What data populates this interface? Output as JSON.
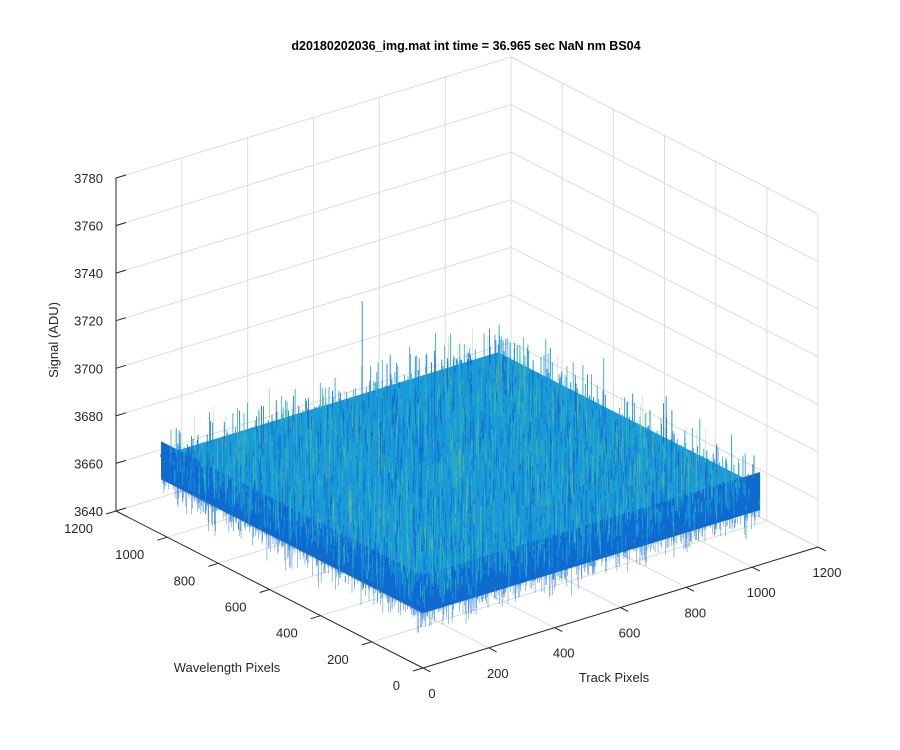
{
  "chart_data": {
    "type": "surface3d",
    "title": "d20180202036_img.mat int time = 36.965 sec  NaN nm BS04",
    "xlabel": "Track Pixels",
    "ylabel": "Wavelength Pixels",
    "zlabel": "Signal (ADU)",
    "xlim": [
      0,
      1200
    ],
    "ylim": [
      0,
      1200
    ],
    "zlim": [
      3640,
      3780
    ],
    "x_ticks": [
      "0",
      "200",
      "400",
      "600",
      "800",
      "1000",
      "1200"
    ],
    "y_ticks": [
      "0",
      "200",
      "400",
      "600",
      "800",
      "1000",
      "1200"
    ],
    "z_ticks": [
      "3640",
      "3660",
      "3680",
      "3700",
      "3720",
      "3740",
      "3760",
      "3780"
    ],
    "grid": true,
    "colormap": "parula",
    "surface": {
      "x_extent": [
        0,
        1024
      ],
      "y_extent": [
        0,
        1024
      ],
      "signal_mean": 3673,
      "signal_noise_range": [
        3645,
        3740
      ],
      "colors": {
        "dark": "#0f6bd0",
        "mid": "#1b9ad6",
        "light": "#2fb6c0",
        "accent": "#8fcf6a"
      }
    }
  }
}
